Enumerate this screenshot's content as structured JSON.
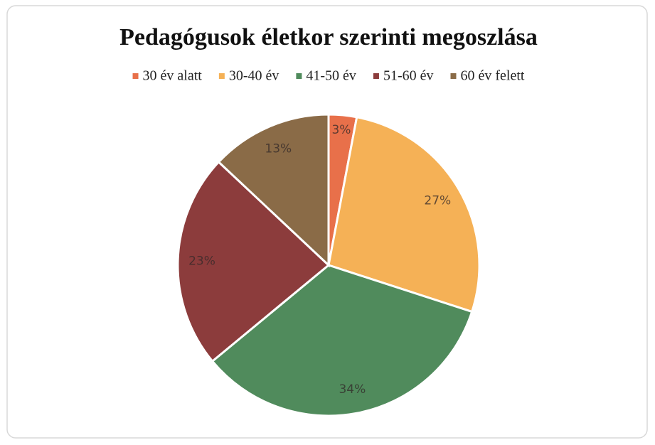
{
  "chart_data": {
    "type": "pie",
    "title": "Pedagógusok életkor szerinti megoszlása",
    "categories": [
      "30 év alatt",
      "30-40 év",
      "41-50 év",
      "51-60 év",
      "60 év felett"
    ],
    "values": [
      3,
      27,
      34,
      23,
      13
    ],
    "value_labels": [
      "3%",
      "27%",
      "34%",
      "23%",
      "13%"
    ],
    "colors": [
      "#e8704a",
      "#f5b156",
      "#508b5c",
      "#8c3c3c",
      "#8a6b47"
    ],
    "legend": "top"
  }
}
